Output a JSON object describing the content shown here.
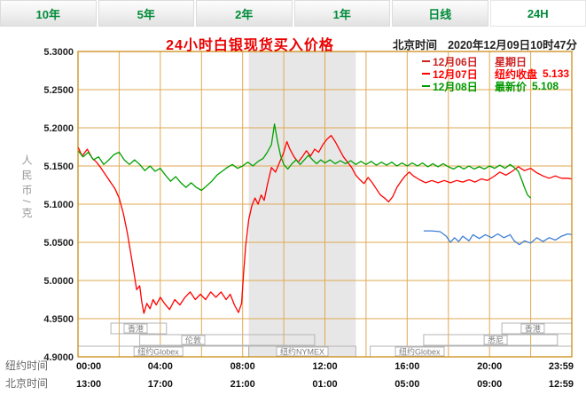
{
  "tabs": {
    "items": [
      {
        "label": "10年",
        "selected": false
      },
      {
        "label": "5年",
        "selected": false
      },
      {
        "label": "2年",
        "selected": false
      },
      {
        "label": "1年",
        "selected": false
      },
      {
        "label": "日线",
        "selected": false
      },
      {
        "label": "24H",
        "selected": true
      }
    ]
  },
  "header": {
    "title": "24小时白银现货买入价格",
    "clock_label": "北京时间",
    "clock_value": "2020年12月09日10时47分"
  },
  "chart_data": {
    "type": "line",
    "title": "24小时白银现货买入价格",
    "ylabel": "人民币/克",
    "ylim": [
      4.9,
      5.3
    ],
    "y_tick_labels": [
      "5.3000",
      "5.2500",
      "5.2000",
      "5.1500",
      "5.1000",
      "5.0500",
      "5.0000",
      "4.9500",
      "4.9000"
    ],
    "x_hours_range": [
      0,
      24
    ],
    "x_grid_step_hours": 2,
    "shaded_band_hours": [
      8.3,
      13.5
    ],
    "colors": {
      "grid": "#E0A953",
      "border": "#C98200",
      "band": "#E7E7E7"
    },
    "x_axis_rows": [
      {
        "label": "纽约时间",
        "tick_hours": [
          0,
          4,
          8,
          12,
          16,
          20,
          24
        ],
        "tick_labels": [
          "00:00",
          "04:00",
          "08:00",
          "12:00",
          "16:00",
          "20:00",
          "23:59"
        ]
      },
      {
        "label": "北京时间",
        "tick_hours": [
          0,
          4,
          8,
          12,
          16,
          20,
          24
        ],
        "tick_labels": [
          "13:00",
          "17:00",
          "21:00",
          "01:00",
          "05:00",
          "09:00",
          "12:59"
        ]
      }
    ],
    "legend": [
      {
        "date": "12月06日",
        "note": "星期日",
        "value": "",
        "color": "#CC2222"
      },
      {
        "date": "12月07日",
        "note": "纽约收盘",
        "value": "5.133",
        "color": "#FF0000"
      },
      {
        "date": "12月08日",
        "note": "最新价",
        "value": "5.108",
        "color": "#009900"
      }
    ],
    "sessions": [
      {
        "name": "香港",
        "row": 0,
        "start": 1.6,
        "end": 4.3,
        "label_at": 2.8
      },
      {
        "name": "伦敦",
        "row": 1,
        "start": 3.0,
        "end": 11.5,
        "label_at": 5.6
      },
      {
        "name": "纽约Globex",
        "row": 2,
        "start": 0.0,
        "end": 8.3,
        "label_at": 3.9
      },
      {
        "name": "纽约NYMEX",
        "row": 2,
        "start": 8.3,
        "end": 13.5,
        "label_at": 10.9
      },
      {
        "name": "纽约Globex",
        "row": 2,
        "start": 14.2,
        "end": 24.0,
        "label_at": 16.6
      },
      {
        "name": "悉尼",
        "row": 1,
        "start": 16.8,
        "end": 23.3,
        "label_at": 20.3
      },
      {
        "name": "香港",
        "row": 0,
        "start": 20.6,
        "end": 24.0,
        "label_at": 22.1
      }
    ],
    "series": [
      {
        "name": "12月06日",
        "color": "#3E7FD6",
        "points": [
          [
            16.8,
            5.065
          ],
          [
            17.2,
            5.065
          ],
          [
            17.6,
            5.064
          ],
          [
            17.9,
            5.058
          ],
          [
            18.1,
            5.05
          ],
          [
            18.3,
            5.056
          ],
          [
            18.5,
            5.051
          ],
          [
            18.7,
            5.058
          ],
          [
            19.0,
            5.052
          ],
          [
            19.2,
            5.06
          ],
          [
            19.5,
            5.055
          ],
          [
            19.8,
            5.06
          ],
          [
            20.1,
            5.056
          ],
          [
            20.4,
            5.061
          ],
          [
            20.7,
            5.056
          ],
          [
            21.0,
            5.06
          ],
          [
            21.2,
            5.052
          ],
          [
            21.45,
            5.047
          ],
          [
            21.7,
            5.052
          ],
          [
            22.0,
            5.049
          ],
          [
            22.3,
            5.056
          ],
          [
            22.6,
            5.051
          ],
          [
            22.9,
            5.056
          ],
          [
            23.2,
            5.053
          ],
          [
            23.5,
            5.058
          ],
          [
            23.8,
            5.061
          ],
          [
            24,
            5.06
          ]
        ]
      },
      {
        "name": "12月07日",
        "color": "#FF0000",
        "points": [
          [
            0,
            5.175
          ],
          [
            0.2,
            5.163
          ],
          [
            0.45,
            5.172
          ],
          [
            0.7,
            5.16
          ],
          [
            0.9,
            5.155
          ],
          [
            1.1,
            5.148
          ],
          [
            1.35,
            5.138
          ],
          [
            1.6,
            5.128
          ],
          [
            1.8,
            5.12
          ],
          [
            2.0,
            5.108
          ],
          [
            2.2,
            5.088
          ],
          [
            2.4,
            5.062
          ],
          [
            2.6,
            5.03
          ],
          [
            2.75,
            5.005
          ],
          [
            2.85,
            4.988
          ],
          [
            3.0,
            4.993
          ],
          [
            3.1,
            4.972
          ],
          [
            3.2,
            4.957
          ],
          [
            3.35,
            4.97
          ],
          [
            3.5,
            4.963
          ],
          [
            3.65,
            4.975
          ],
          [
            3.8,
            4.968
          ],
          [
            4.0,
            4.978
          ],
          [
            4.2,
            4.97
          ],
          [
            4.45,
            4.962
          ],
          [
            4.7,
            4.975
          ],
          [
            4.95,
            4.968
          ],
          [
            5.2,
            4.978
          ],
          [
            5.45,
            4.985
          ],
          [
            5.7,
            4.975
          ],
          [
            5.95,
            4.982
          ],
          [
            6.2,
            4.975
          ],
          [
            6.45,
            4.985
          ],
          [
            6.7,
            4.978
          ],
          [
            6.95,
            4.985
          ],
          [
            7.2,
            4.975
          ],
          [
            7.4,
            4.982
          ],
          [
            7.6,
            4.968
          ],
          [
            7.8,
            4.958
          ],
          [
            7.95,
            4.97
          ],
          [
            8.05,
            5.01
          ],
          [
            8.15,
            5.045
          ],
          [
            8.3,
            5.08
          ],
          [
            8.45,
            5.098
          ],
          [
            8.6,
            5.108
          ],
          [
            8.75,
            5.1
          ],
          [
            8.9,
            5.112
          ],
          [
            9.05,
            5.105
          ],
          [
            9.2,
            5.125
          ],
          [
            9.4,
            5.148
          ],
          [
            9.6,
            5.142
          ],
          [
            9.8,
            5.155
          ],
          [
            10.0,
            5.168
          ],
          [
            10.15,
            5.182
          ],
          [
            10.3,
            5.172
          ],
          [
            10.5,
            5.162
          ],
          [
            10.7,
            5.155
          ],
          [
            10.9,
            5.162
          ],
          [
            11.1,
            5.17
          ],
          [
            11.3,
            5.163
          ],
          [
            11.5,
            5.172
          ],
          [
            11.7,
            5.168
          ],
          [
            11.9,
            5.178
          ],
          [
            12.1,
            5.185
          ],
          [
            12.3,
            5.19
          ],
          [
            12.5,
            5.182
          ],
          [
            12.7,
            5.172
          ],
          [
            12.9,
            5.162
          ],
          [
            13.1,
            5.155
          ],
          [
            13.3,
            5.148
          ],
          [
            13.5,
            5.138
          ],
          [
            13.7,
            5.132
          ],
          [
            13.9,
            5.127
          ],
          [
            14.1,
            5.135
          ],
          [
            14.3,
            5.128
          ],
          [
            14.5,
            5.12
          ],
          [
            14.7,
            5.112
          ],
          [
            14.9,
            5.108
          ],
          [
            15.1,
            5.103
          ],
          [
            15.3,
            5.11
          ],
          [
            15.5,
            5.122
          ],
          [
            15.7,
            5.13
          ],
          [
            15.9,
            5.137
          ],
          [
            16.1,
            5.142
          ],
          [
            16.3,
            5.137
          ],
          [
            16.6,
            5.132
          ],
          [
            16.9,
            5.128
          ],
          [
            17.2,
            5.131
          ],
          [
            17.5,
            5.128
          ],
          [
            17.8,
            5.131
          ],
          [
            18.1,
            5.128
          ],
          [
            18.4,
            5.131
          ],
          [
            18.7,
            5.129
          ],
          [
            19.0,
            5.132
          ],
          [
            19.3,
            5.129
          ],
          [
            19.6,
            5.133
          ],
          [
            19.9,
            5.131
          ],
          [
            20.2,
            5.136
          ],
          [
            20.5,
            5.142
          ],
          [
            20.8,
            5.138
          ],
          [
            21.1,
            5.143
          ],
          [
            21.4,
            5.149
          ],
          [
            21.7,
            5.144
          ],
          [
            22.0,
            5.147
          ],
          [
            22.3,
            5.141
          ],
          [
            22.6,
            5.137
          ],
          [
            22.9,
            5.134
          ],
          [
            23.2,
            5.137
          ],
          [
            23.5,
            5.134
          ],
          [
            23.8,
            5.134
          ],
          [
            24,
            5.133
          ]
        ]
      },
      {
        "name": "12月08日",
        "color": "#00A000",
        "points": [
          [
            0,
            5.17
          ],
          [
            0.25,
            5.162
          ],
          [
            0.5,
            5.168
          ],
          [
            0.75,
            5.158
          ],
          [
            1.0,
            5.162
          ],
          [
            1.25,
            5.152
          ],
          [
            1.5,
            5.158
          ],
          [
            1.75,
            5.165
          ],
          [
            2.0,
            5.168
          ],
          [
            2.25,
            5.158
          ],
          [
            2.5,
            5.152
          ],
          [
            2.75,
            5.158
          ],
          [
            3.0,
            5.152
          ],
          [
            3.25,
            5.144
          ],
          [
            3.5,
            5.15
          ],
          [
            3.75,
            5.143
          ],
          [
            4.0,
            5.147
          ],
          [
            4.25,
            5.138
          ],
          [
            4.5,
            5.13
          ],
          [
            4.75,
            5.136
          ],
          [
            5.0,
            5.128
          ],
          [
            5.25,
            5.122
          ],
          [
            5.5,
            5.128
          ],
          [
            5.75,
            5.122
          ],
          [
            6.0,
            5.118
          ],
          [
            6.25,
            5.124
          ],
          [
            6.5,
            5.13
          ],
          [
            6.75,
            5.138
          ],
          [
            7.0,
            5.143
          ],
          [
            7.25,
            5.148
          ],
          [
            7.5,
            5.152
          ],
          [
            7.75,
            5.147
          ],
          [
            8.0,
            5.15
          ],
          [
            8.25,
            5.155
          ],
          [
            8.5,
            5.15
          ],
          [
            8.75,
            5.156
          ],
          [
            9.0,
            5.16
          ],
          [
            9.2,
            5.168
          ],
          [
            9.4,
            5.178
          ],
          [
            9.55,
            5.205
          ],
          [
            9.7,
            5.182
          ],
          [
            9.85,
            5.163
          ],
          [
            10.0,
            5.152
          ],
          [
            10.2,
            5.146
          ],
          [
            10.4,
            5.153
          ],
          [
            10.6,
            5.158
          ],
          [
            10.8,
            5.152
          ],
          [
            11.0,
            5.158
          ],
          [
            11.2,
            5.164
          ],
          [
            11.4,
            5.158
          ],
          [
            11.6,
            5.153
          ],
          [
            11.8,
            5.158
          ],
          [
            12.0,
            5.154
          ],
          [
            12.25,
            5.158
          ],
          [
            12.5,
            5.153
          ],
          [
            12.75,
            5.157
          ],
          [
            13.0,
            5.153
          ],
          [
            13.25,
            5.157
          ],
          [
            13.5,
            5.152
          ],
          [
            13.75,
            5.156
          ],
          [
            14.0,
            5.152
          ],
          [
            14.25,
            5.156
          ],
          [
            14.5,
            5.151
          ],
          [
            14.75,
            5.155
          ],
          [
            15.0,
            5.151
          ],
          [
            15.25,
            5.155
          ],
          [
            15.5,
            5.15
          ],
          [
            15.75,
            5.154
          ],
          [
            16.0,
            5.15
          ],
          [
            16.25,
            5.154
          ],
          [
            16.5,
            5.15
          ],
          [
            16.75,
            5.154
          ],
          [
            17.0,
            5.149
          ],
          [
            17.25,
            5.153
          ],
          [
            17.5,
            5.149
          ],
          [
            17.75,
            5.153
          ],
          [
            18.0,
            5.149
          ],
          [
            18.25,
            5.146
          ],
          [
            18.5,
            5.15
          ],
          [
            18.75,
            5.146
          ],
          [
            19.0,
            5.15
          ],
          [
            19.25,
            5.146
          ],
          [
            19.5,
            5.149
          ],
          [
            19.75,
            5.146
          ],
          [
            20.0,
            5.15
          ],
          [
            20.25,
            5.147
          ],
          [
            20.5,
            5.151
          ],
          [
            20.75,
            5.147
          ],
          [
            21.0,
            5.152
          ],
          [
            21.2,
            5.148
          ],
          [
            21.4,
            5.143
          ],
          [
            21.55,
            5.133
          ],
          [
            21.7,
            5.122
          ],
          [
            21.85,
            5.112
          ],
          [
            22.0,
            5.108
          ]
        ]
      }
    ]
  }
}
